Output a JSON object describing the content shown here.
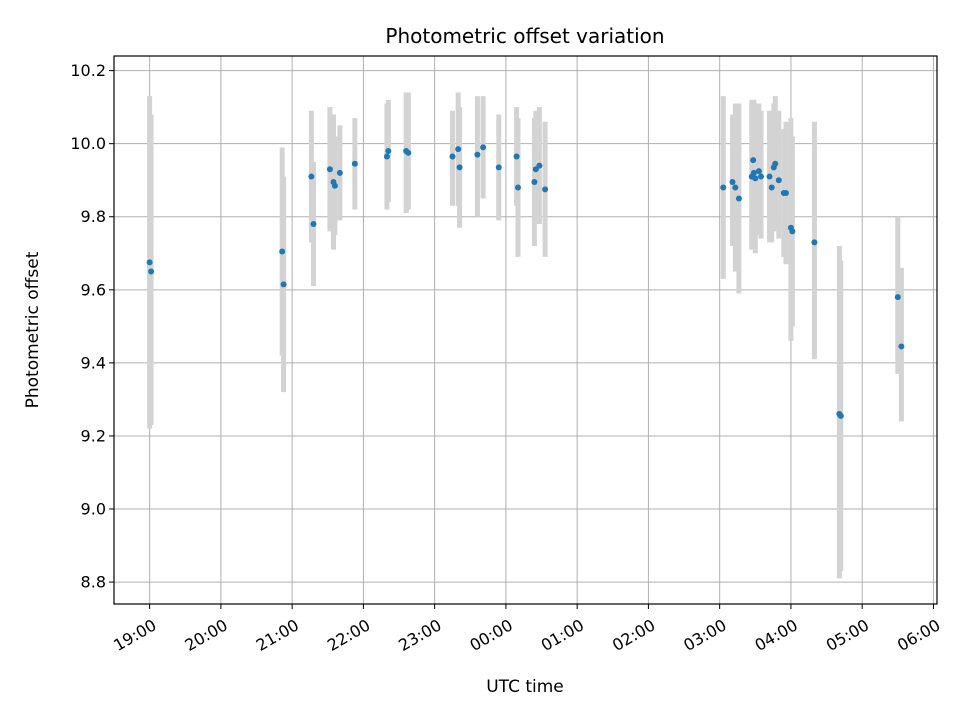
{
  "chart_data": {
    "type": "scatter",
    "title": "Photometric offset variation",
    "xlabel": "UTC time",
    "ylabel": "Photometric offset",
    "grid": true,
    "xlim": [
      -0.5,
      11.05
    ],
    "ylim": [
      8.74,
      10.24
    ],
    "x_unit": "hours since 19:00 UTC",
    "x_ticks": [
      {
        "value": 0,
        "label": "19:00"
      },
      {
        "value": 1,
        "label": "20:00"
      },
      {
        "value": 2,
        "label": "21:00"
      },
      {
        "value": 3,
        "label": "22:00"
      },
      {
        "value": 4,
        "label": "23:00"
      },
      {
        "value": 5,
        "label": "00:00"
      },
      {
        "value": 6,
        "label": "01:00"
      },
      {
        "value": 7,
        "label": "02:00"
      },
      {
        "value": 8,
        "label": "03:00"
      },
      {
        "value": 9,
        "label": "04:00"
      },
      {
        "value": 10,
        "label": "05:00"
      },
      {
        "value": 11,
        "label": "06:00"
      }
    ],
    "y_ticks": [
      {
        "value": 8.8,
        "label": "8.8"
      },
      {
        "value": 9.0,
        "label": "9.0"
      },
      {
        "value": 9.2,
        "label": "9.2"
      },
      {
        "value": 9.4,
        "label": "9.4"
      },
      {
        "value": 9.6,
        "label": "9.6"
      },
      {
        "value": 9.8,
        "label": "9.8"
      },
      {
        "value": 10.0,
        "label": "10.0"
      },
      {
        "value": 10.2,
        "label": "10.2"
      }
    ],
    "marker_color": "#1f77b4",
    "errorbar_color": "#d3d3d3",
    "points": [
      {
        "x": 0.0,
        "y": 9.675,
        "lo": 9.22,
        "hi": 10.13
      },
      {
        "x": 0.02,
        "y": 9.65,
        "lo": 9.23,
        "hi": 10.08
      },
      {
        "x": 1.86,
        "y": 9.705,
        "lo": 9.42,
        "hi": 9.99
      },
      {
        "x": 1.88,
        "y": 9.615,
        "lo": 9.32,
        "hi": 9.91
      },
      {
        "x": 2.27,
        "y": 9.91,
        "lo": 9.73,
        "hi": 10.09
      },
      {
        "x": 2.3,
        "y": 9.78,
        "lo": 9.61,
        "hi": 9.95
      },
      {
        "x": 2.53,
        "y": 9.93,
        "lo": 9.76,
        "hi": 10.1
      },
      {
        "x": 2.58,
        "y": 9.895,
        "lo": 9.71,
        "hi": 10.08
      },
      {
        "x": 2.6,
        "y": 9.885,
        "lo": 9.75,
        "hi": 10.02
      },
      {
        "x": 2.67,
        "y": 9.92,
        "lo": 9.79,
        "hi": 10.05
      },
      {
        "x": 2.88,
        "y": 9.945,
        "lo": 9.82,
        "hi": 10.07
      },
      {
        "x": 3.33,
        "y": 9.965,
        "lo": 9.82,
        "hi": 10.11
      },
      {
        "x": 3.35,
        "y": 9.98,
        "lo": 9.84,
        "hi": 10.12
      },
      {
        "x": 3.6,
        "y": 9.98,
        "lo": 9.81,
        "hi": 10.14
      },
      {
        "x": 3.63,
        "y": 9.975,
        "lo": 9.82,
        "hi": 10.14
      },
      {
        "x": 4.25,
        "y": 9.965,
        "lo": 9.83,
        "hi": 10.09
      },
      {
        "x": 4.33,
        "y": 9.985,
        "lo": 9.83,
        "hi": 10.14
      },
      {
        "x": 4.35,
        "y": 9.935,
        "lo": 9.77,
        "hi": 10.1
      },
      {
        "x": 4.6,
        "y": 9.97,
        "lo": 9.8,
        "hi": 10.13
      },
      {
        "x": 4.68,
        "y": 9.99,
        "lo": 9.85,
        "hi": 10.13
      },
      {
        "x": 4.9,
        "y": 9.935,
        "lo": 9.79,
        "hi": 10.08
      },
      {
        "x": 5.15,
        "y": 9.965,
        "lo": 9.83,
        "hi": 10.1
      },
      {
        "x": 5.17,
        "y": 9.88,
        "lo": 9.69,
        "hi": 10.07
      },
      {
        "x": 5.4,
        "y": 9.895,
        "lo": 9.72,
        "hi": 10.07
      },
      {
        "x": 5.42,
        "y": 9.93,
        "lo": 9.78,
        "hi": 10.09
      },
      {
        "x": 5.47,
        "y": 9.94,
        "lo": 9.78,
        "hi": 10.1
      },
      {
        "x": 5.55,
        "y": 9.875,
        "lo": 9.69,
        "hi": 10.06
      },
      {
        "x": 8.05,
        "y": 9.88,
        "lo": 9.63,
        "hi": 10.13
      },
      {
        "x": 8.18,
        "y": 9.895,
        "lo": 9.72,
        "hi": 10.08
      },
      {
        "x": 8.22,
        "y": 9.88,
        "lo": 9.65,
        "hi": 10.11
      },
      {
        "x": 8.27,
        "y": 9.85,
        "lo": 9.59,
        "hi": 10.11
      },
      {
        "x": 8.45,
        "y": 9.91,
        "lo": 9.71,
        "hi": 10.12
      },
      {
        "x": 8.47,
        "y": 9.955,
        "lo": 9.74,
        "hi": 10.12
      },
      {
        "x": 8.48,
        "y": 9.92,
        "lo": 9.72,
        "hi": 10.12
      },
      {
        "x": 8.5,
        "y": 9.905,
        "lo": 9.7,
        "hi": 10.11
      },
      {
        "x": 8.55,
        "y": 9.925,
        "lo": 9.75,
        "hi": 10.11
      },
      {
        "x": 8.58,
        "y": 9.91,
        "lo": 9.74,
        "hi": 10.09
      },
      {
        "x": 8.7,
        "y": 9.91,
        "lo": 9.73,
        "hi": 10.09
      },
      {
        "x": 8.73,
        "y": 9.88,
        "lo": 9.73,
        "hi": 10.06
      },
      {
        "x": 8.76,
        "y": 9.935,
        "lo": 9.76,
        "hi": 10.11
      },
      {
        "x": 8.78,
        "y": 9.945,
        "lo": 9.77,
        "hi": 10.13
      },
      {
        "x": 8.83,
        "y": 9.9,
        "lo": 9.74,
        "hi": 10.09
      },
      {
        "x": 8.9,
        "y": 9.865,
        "lo": 9.69,
        "hi": 10.04
      },
      {
        "x": 8.93,
        "y": 9.865,
        "lo": 9.67,
        "hi": 10.06
      },
      {
        "x": 9.0,
        "y": 9.77,
        "lo": 9.46,
        "hi": 10.07
      },
      {
        "x": 9.02,
        "y": 9.76,
        "lo": 9.5,
        "hi": 10.02
      },
      {
        "x": 9.33,
        "y": 9.73,
        "lo": 9.41,
        "hi": 10.06
      },
      {
        "x": 9.68,
        "y": 9.26,
        "lo": 8.81,
        "hi": 9.72
      },
      {
        "x": 9.7,
        "y": 9.255,
        "lo": 8.83,
        "hi": 9.68
      },
      {
        "x": 10.5,
        "y": 9.58,
        "lo": 9.37,
        "hi": 9.8
      },
      {
        "x": 10.55,
        "y": 9.445,
        "lo": 9.24,
        "hi": 9.66
      }
    ]
  }
}
